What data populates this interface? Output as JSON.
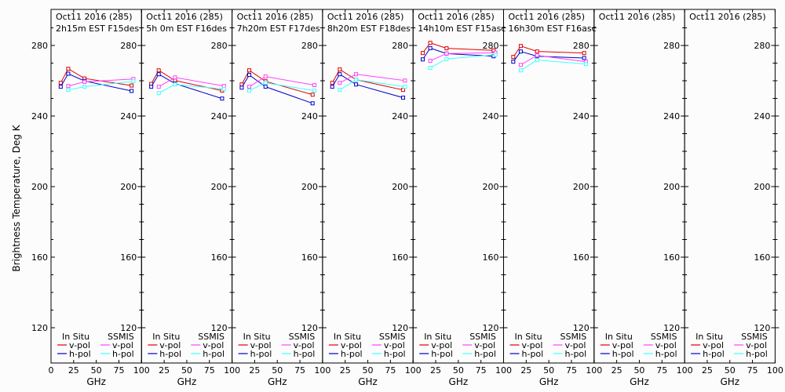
{
  "chart_data": {
    "type": "line",
    "ylabel": "Brightness Temperature, Deg K",
    "xlabel": "GHz",
    "ylim": [
      110,
      295
    ],
    "xlim": [
      0,
      100
    ],
    "yticks": [
      120,
      160,
      200,
      240,
      280
    ],
    "ytick_labels": [
      "120",
      "160",
      "200",
      "240",
      "280"
    ],
    "xticks": [
      0,
      25,
      50,
      75,
      100
    ],
    "xtick_labels": [
      "0",
      "25",
      "50",
      "75",
      "100"
    ],
    "colors": {
      "insitu_vpol": "#e00000",
      "insitu_hpol": "#0000c8",
      "ssmis_vpol": "#ff40ff",
      "ssmis_hpol": "#40ffff"
    },
    "legend": {
      "placement": "bottom",
      "group_insitu": "In Situ",
      "group_ssmis": "SSMIS",
      "entries": [
        {
          "group": "In Situ",
          "label": "v-pol",
          "key": "insitu_vpol"
        },
        {
          "group": "In Situ",
          "label": "h-pol",
          "key": "insitu_hpol"
        },
        {
          "group": "SSMIS",
          "label": "v-pol",
          "key": "ssmis_vpol"
        },
        {
          "group": "SSMIS",
          "label": "h-pol",
          "key": "ssmis_hpol"
        }
      ]
    },
    "panels": [
      {
        "title_line1": "Oct11 2016 (285)",
        "title_line2": "2h15m EST F15des",
        "series": [
          {
            "key": "insitu_vpol",
            "x": [
              10.7,
              19,
              37,
              89
            ],
            "y": [
              258.8,
              266.8,
              261.3,
              257.3
            ]
          },
          {
            "key": "insitu_hpol",
            "x": [
              10.7,
              19,
              37,
              89
            ],
            "y": [
              256.6,
              264.0,
              259.9,
              254.2
            ]
          },
          {
            "key": "ssmis_vpol",
            "x": [
              19,
              37,
              91
            ],
            "y": [
              257.0,
              259.4,
              261.0
            ]
          },
          {
            "key": "ssmis_hpol",
            "x": [
              19,
              37,
              91
            ],
            "y": [
              254.8,
              256.6,
              259.7
            ]
          }
        ]
      },
      {
        "title_line1": "Oct11 2016 (285)",
        "title_line2": "5h 0m EST F16des",
        "series": [
          {
            "key": "insitu_vpol",
            "x": [
              10.7,
              19,
              37,
              89
            ],
            "y": [
              258.2,
              265.9,
              260.1,
              254.4
            ]
          },
          {
            "key": "insitu_hpol",
            "x": [
              10.7,
              19,
              37,
              89
            ],
            "y": [
              256.6,
              263.7,
              258.4,
              249.9
            ]
          },
          {
            "key": "ssmis_vpol",
            "x": [
              19,
              37,
              91
            ],
            "y": [
              256.6,
              261.9,
              257.0
            ]
          },
          {
            "key": "ssmis_hpol",
            "x": [
              19,
              37,
              91
            ],
            "y": [
              253.0,
              257.9,
              255.3
            ]
          }
        ]
      },
      {
        "title_line1": "Oct11 2016 (285)",
        "title_line2": "7h20m EST F17des",
        "series": [
          {
            "key": "insitu_vpol",
            "x": [
              10.7,
              19,
              37,
              89
            ],
            "y": [
              257.9,
              265.9,
              259.7,
              252.1
            ]
          },
          {
            "key": "insitu_hpol",
            "x": [
              10.7,
              19,
              37,
              89
            ],
            "y": [
              256.1,
              263.3,
              256.6,
              247.2
            ]
          },
          {
            "key": "ssmis_vpol",
            "x": [
              19,
              37,
              91
            ],
            "y": [
              256.6,
              262.4,
              257.5
            ]
          },
          {
            "key": "ssmis_hpol",
            "x": [
              19,
              37,
              91
            ],
            "y": [
              254.4,
              258.8,
              254.4
            ]
          }
        ]
      },
      {
        "title_line1": "Oct11 2016 (285)",
        "title_line2": "8h20m EST F18des",
        "series": [
          {
            "key": "insitu_vpol",
            "x": [
              10.7,
              19,
              37,
              89
            ],
            "y": [
              258.8,
              266.4,
              260.6,
              254.8
            ]
          },
          {
            "key": "insitu_hpol",
            "x": [
              10.7,
              19,
              37,
              89
            ],
            "y": [
              256.6,
              263.7,
              257.9,
              250.4
            ]
          },
          {
            "key": "ssmis_vpol",
            "x": [
              19,
              37,
              91
            ],
            "y": [
              258.8,
              263.7,
              260.1
            ]
          },
          {
            "key": "ssmis_hpol",
            "x": [
              19,
              37,
              91
            ],
            "y": [
              254.8,
              260.6,
              256.6
            ]
          }
        ]
      },
      {
        "title_line1": "Oct11 2016 (285)",
        "title_line2": "14h10m EST F15asc",
        "series": [
          {
            "key": "insitu_vpol",
            "x": [
              10.7,
              19,
              37,
              89
            ],
            "y": [
              275.7,
              281.5,
              278.4,
              277.2
            ]
          },
          {
            "key": "insitu_hpol",
            "x": [
              10.7,
              19,
              37,
              89
            ],
            "y": [
              272.1,
              278.5,
              275.4,
              273.9
            ]
          },
          {
            "key": "ssmis_vpol",
            "x": [
              19,
              37,
              91
            ],
            "y": [
              271.3,
              275.4,
              275.9
            ]
          },
          {
            "key": "ssmis_hpol",
            "x": [
              19,
              37,
              91
            ],
            "y": [
              267.3,
              272.4,
              274.7
            ]
          }
        ]
      },
      {
        "title_line1": "Oct11 2016 (285)",
        "title_line2": "16h30m EST F16asc",
        "series": [
          {
            "key": "insitu_vpol",
            "x": [
              10.7,
              19,
              37,
              89
            ],
            "y": [
              273.5,
              279.7,
              276.6,
              275.7
            ]
          },
          {
            "key": "insitu_hpol",
            "x": [
              10.7,
              19,
              37,
              89
            ],
            "y": [
              270.8,
              276.6,
              273.9,
              272.9
            ]
          },
          {
            "key": "ssmis_vpol",
            "x": [
              19,
              37,
              91
            ],
            "y": [
              269.0,
              274.4,
              270.8
            ]
          },
          {
            "key": "ssmis_hpol",
            "x": [
              19,
              37,
              91
            ],
            "y": [
              265.9,
              271.7,
              269.5
            ]
          }
        ]
      },
      {
        "title_line1": "Oct11 2016 (285)",
        "title_line2": "",
        "series": []
      },
      {
        "title_line1": "Oct11 2016 (285)",
        "title_line2": "",
        "series": []
      }
    ]
  }
}
